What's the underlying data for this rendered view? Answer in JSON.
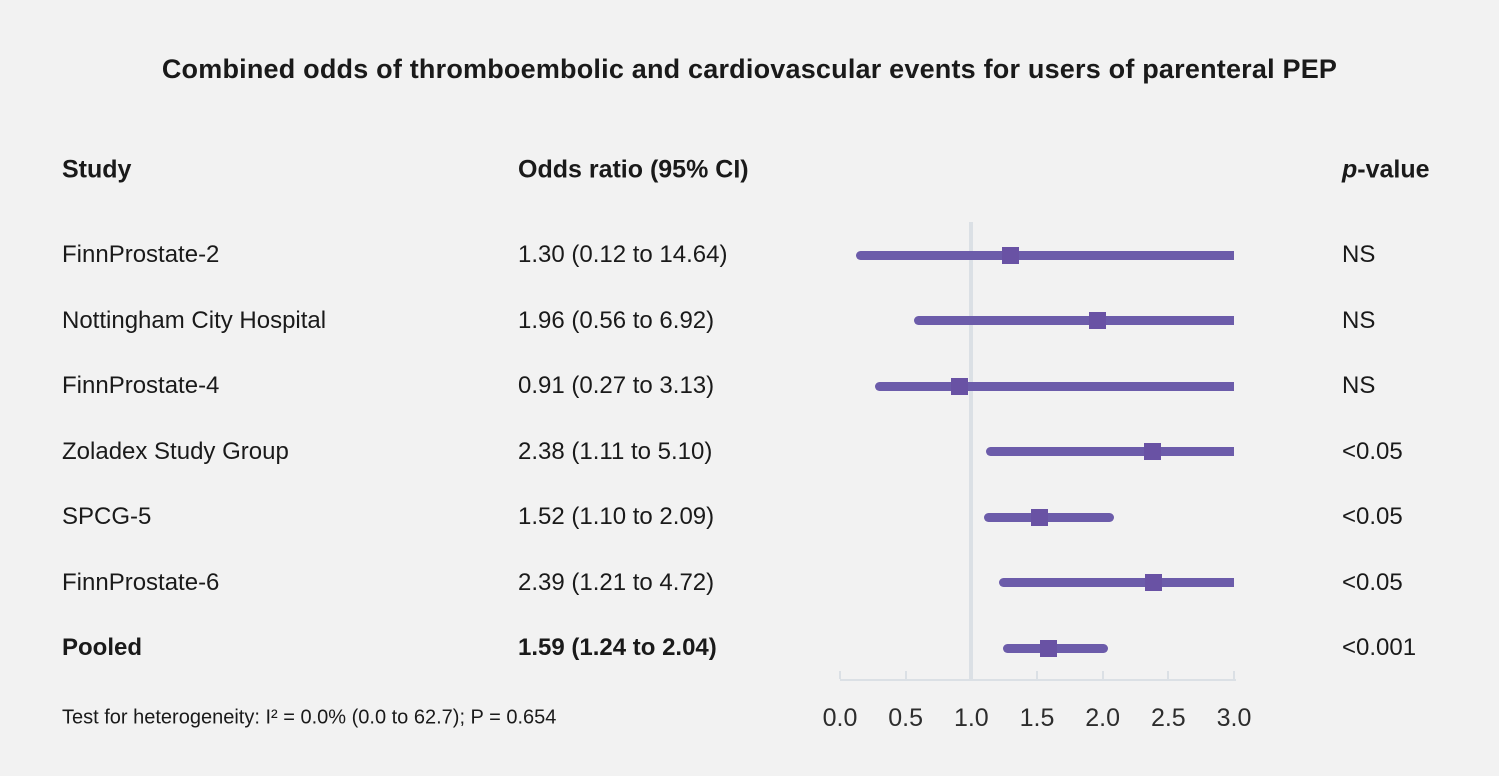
{
  "title": "Combined odds of thromboembolic and cardiovascular events for users of parenteral PEP",
  "columns": {
    "study": "Study",
    "odds_ratio": "Odds ratio (95% CI)",
    "p_italic": "p",
    "p_rest": "-value"
  },
  "footer": "Test for heterogeneity: I² = 0.0% (0.0 to 62.7); P = 0.654",
  "colors": {
    "background": "#f2f2f2",
    "text": "#1a1a1a",
    "ci_line": "#6c5caa",
    "marker": "#6952a4",
    "axis_gray": "#dbe0e5"
  },
  "chart_data": {
    "type": "forest",
    "xlabel": "",
    "xlim": [
      0.0,
      3.0
    ],
    "reference_line": 1.0,
    "x_ticks": [
      0.0,
      0.5,
      1.0,
      1.5,
      2.0,
      2.5,
      3.0
    ],
    "x_tick_labels": [
      "0.0",
      "0.5",
      "1.0",
      "1.5",
      "2.0",
      "2.5",
      "3.0"
    ],
    "rows": [
      {
        "study": "FinnProstate-2",
        "or_label": "1.30 (0.12 to 14.64)",
        "or": 1.3,
        "ci_low": 0.12,
        "ci_high": 14.64,
        "p": "NS",
        "bold": false
      },
      {
        "study": "Nottingham City Hospital",
        "or_label": "1.96 (0.56 to 6.92)",
        "or": 1.96,
        "ci_low": 0.56,
        "ci_high": 6.92,
        "p": "NS",
        "bold": false
      },
      {
        "study": "FinnProstate-4",
        "or_label": "0.91 (0.27 to 3.13)",
        "or": 0.91,
        "ci_low": 0.27,
        "ci_high": 3.13,
        "p": "NS",
        "bold": false
      },
      {
        "study": "Zoladex Study Group",
        "or_label": "2.38 (1.11 to 5.10)",
        "or": 2.38,
        "ci_low": 1.11,
        "ci_high": 5.1,
        "p": "<0.05",
        "bold": false
      },
      {
        "study": "SPCG-5",
        "or_label": "1.52 (1.10 to 2.09)",
        "or": 1.52,
        "ci_low": 1.1,
        "ci_high": 2.09,
        "p": "<0.05",
        "bold": false
      },
      {
        "study": "FinnProstate-6",
        "or_label": "2.39 (1.21 to 4.72)",
        "or": 2.39,
        "ci_low": 1.21,
        "ci_high": 4.72,
        "p": "<0.05",
        "bold": false
      },
      {
        "study": "Pooled",
        "or_label": "1.59 (1.24 to 2.04)",
        "or": 1.59,
        "ci_low": 1.24,
        "ci_high": 2.04,
        "p": "<0.001",
        "bold": true
      }
    ]
  }
}
